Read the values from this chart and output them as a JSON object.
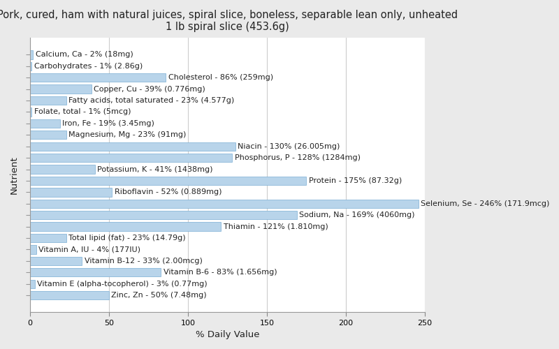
{
  "title": "Pork, cured, ham with natural juices, spiral slice, boneless, separable lean only, unheated\n1 lb spiral slice (453.6g)",
  "xlabel": "% Daily Value",
  "ylabel": "Nutrient",
  "nutrients": [
    "Calcium, Ca - 2% (18mg)",
    "Carbohydrates - 1% (2.86g)",
    "Cholesterol - 86% (259mg)",
    "Copper, Cu - 39% (0.776mg)",
    "Fatty acids, total saturated - 23% (4.577g)",
    "Folate, total - 1% (5mcg)",
    "Iron, Fe - 19% (3.45mg)",
    "Magnesium, Mg - 23% (91mg)",
    "Niacin - 130% (26.005mg)",
    "Phosphorus, P - 128% (1284mg)",
    "Potassium, K - 41% (1438mg)",
    "Protein - 175% (87.32g)",
    "Riboflavin - 52% (0.889mg)",
    "Selenium, Se - 246% (171.9mcg)",
    "Sodium, Na - 169% (4060mg)",
    "Thiamin - 121% (1.810mg)",
    "Total lipid (fat) - 23% (14.79g)",
    "Vitamin A, IU - 4% (177IU)",
    "Vitamin B-12 - 33% (2.00mcg)",
    "Vitamin B-6 - 83% (1.656mg)",
    "Vitamin E (alpha-tocopherol) - 3% (0.77mg)",
    "Zinc, Zn - 50% (7.48mg)"
  ],
  "values": [
    2,
    1,
    86,
    39,
    23,
    1,
    19,
    23,
    130,
    128,
    41,
    175,
    52,
    246,
    169,
    121,
    23,
    4,
    33,
    83,
    3,
    50
  ],
  "bar_color": "#b8d4ea",
  "bar_edge_color": "#7aaed4",
  "background_color": "#eaeaea",
  "plot_bg_color": "#ffffff",
  "text_color": "#222222",
  "grid_color": "#cccccc",
  "xlim": [
    0,
    250
  ],
  "xticks": [
    0,
    50,
    100,
    150,
    200,
    250
  ],
  "title_fontsize": 10.5,
  "label_fontsize": 8.0,
  "axis_label_fontsize": 9.5,
  "bar_height": 0.75
}
